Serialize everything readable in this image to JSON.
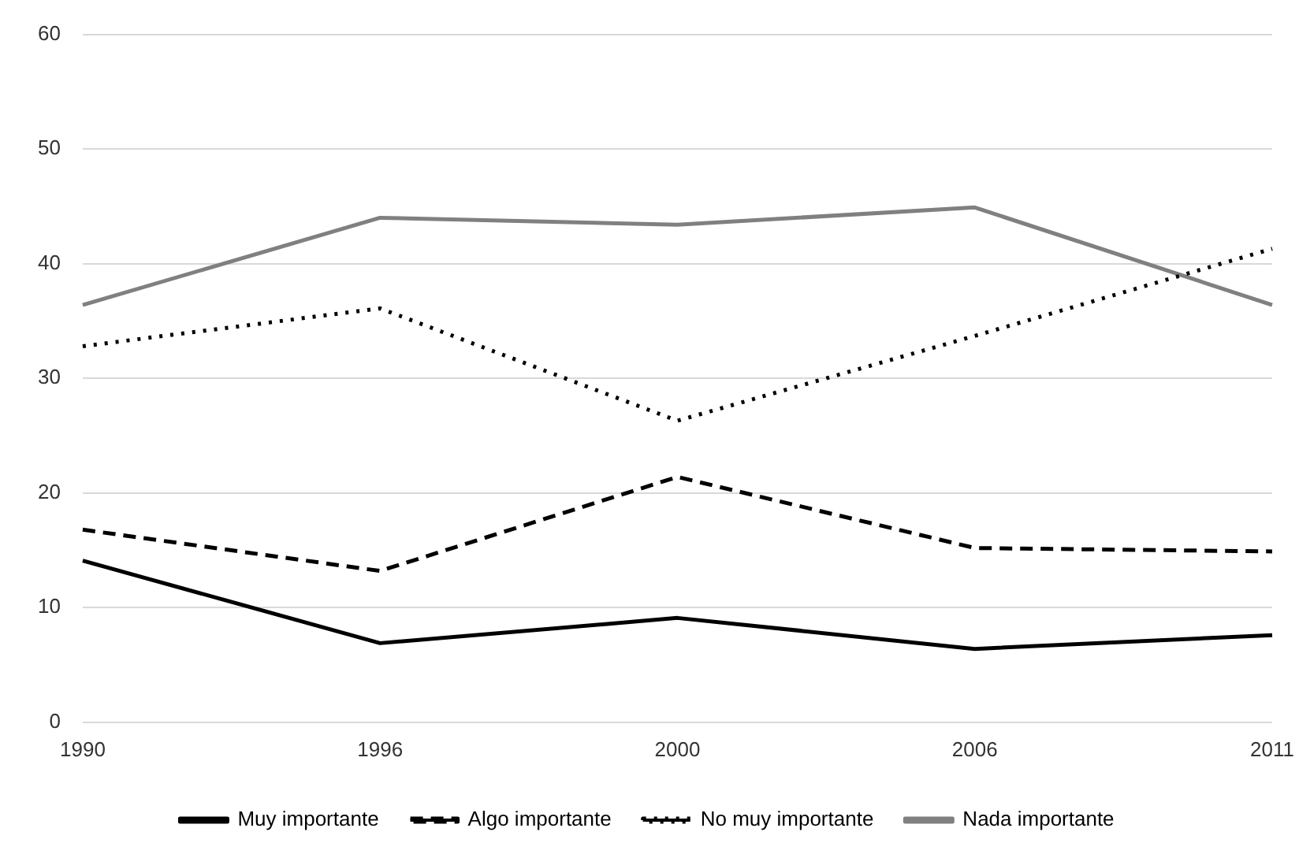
{
  "chart_data": {
    "type": "line",
    "categories": [
      "1990",
      "1996",
      "2000",
      "2006",
      "2011"
    ],
    "series": [
      {
        "name": "Muy importante",
        "color": "#000000",
        "line_style": "solid",
        "values": [
          14.1,
          6.9,
          9.1,
          6.4,
          7.6
        ]
      },
      {
        "name": "Algo importante",
        "color": "#000000",
        "line_style": "dashed",
        "values": [
          16.8,
          13.2,
          21.4,
          15.2,
          14.9
        ]
      },
      {
        "name": "No muy importante",
        "color": "#000000",
        "line_style": "dotted",
        "values": [
          32.8,
          36.1,
          26.3,
          33.7,
          41.3
        ]
      },
      {
        "name": "Nada importante",
        "color": "#808080",
        "line_style": "solid",
        "values": [
          36.4,
          44.0,
          43.4,
          44.9,
          36.4
        ]
      }
    ],
    "ylim": [
      0,
      60
    ],
    "yticks": [
      0,
      10,
      20,
      30,
      40,
      50,
      60
    ],
    "grid": "y",
    "legend": "bottom",
    "marker": "none"
  }
}
